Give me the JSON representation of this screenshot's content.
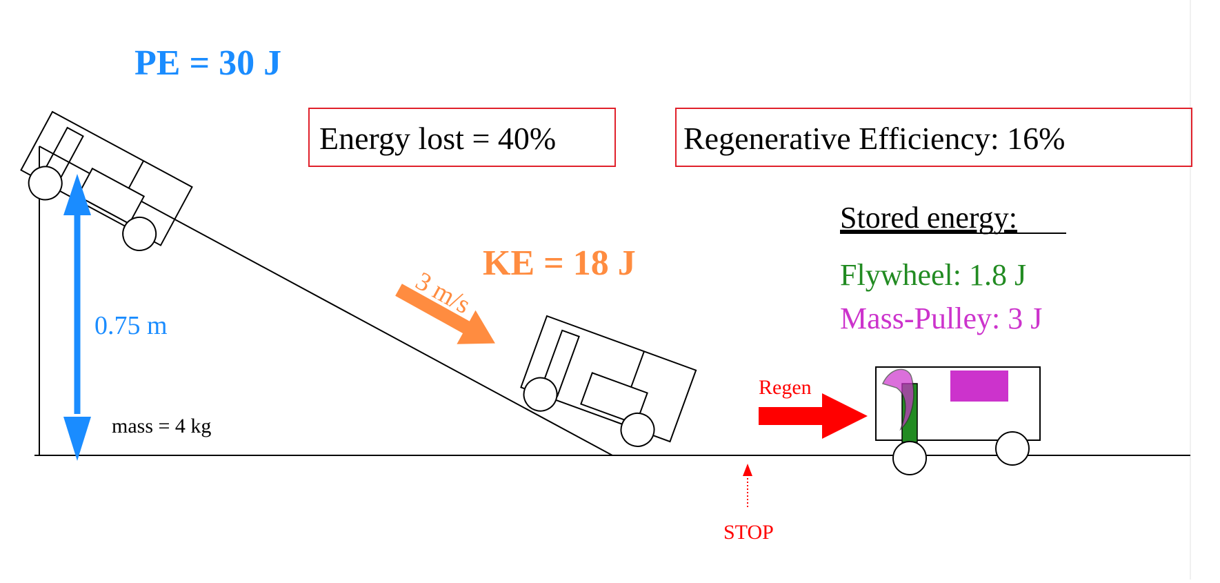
{
  "labels": {
    "pe": "PE = 30 J",
    "ke": "KE = 18 J",
    "velocity": "3 m/s",
    "height": "0.75 m",
    "mass": "mass = 4 kg",
    "energy_lost": "Energy lost = 40%",
    "regen_efficiency": "Regenerative Efficiency: 16%",
    "stored_energy_heading": "Stored energy:",
    "flywheel": "Flywheel: 1.8 J",
    "mass_pulley": "Mass-Pulley: 3 J",
    "regen": "Regen",
    "stop": "STOP"
  },
  "colors": {
    "pe": "#1a8cff",
    "ke": "#ff8c40",
    "flywheel": "#228b22",
    "mass_pulley": "#cc33cc",
    "regen": "#ff0000",
    "stroke": "#000000",
    "box_border": "#e0202a"
  },
  "icons": {
    "height_arrow": "double-vertical-arrow",
    "velocity_arrow": "arrow-down-right",
    "regen_arrow": "arrow-right",
    "stop_arrow": "dotted-arrow-up"
  }
}
